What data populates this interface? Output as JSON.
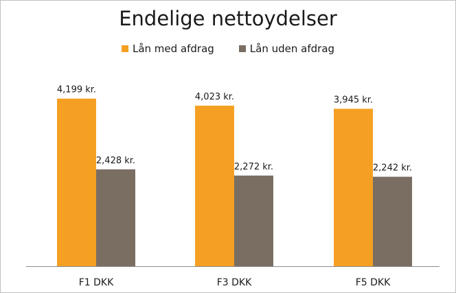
{
  "chart_data": {
    "type": "bar",
    "title": "Endelige nettoydelser",
    "categories": [
      "F1 DKK",
      "F3 DKK",
      "F5 DKK"
    ],
    "series": [
      {
        "name": "Lån med afdrag",
        "color": "#f5a023",
        "values": [
          4199,
          4023,
          3945
        ],
        "labels": [
          "4,199 kr.",
          "4,023 kr.",
          "3,945 kr."
        ]
      },
      {
        "name": "Lån uden afdrag",
        "color": "#7a6e62",
        "values": [
          2428,
          2272,
          2242
        ],
        "labels": [
          "2,428 kr.",
          "2,272 kr.",
          "2,242 kr."
        ]
      }
    ],
    "ylim": [
      0,
      4500
    ],
    "grid": false,
    "legend_position": "top"
  }
}
